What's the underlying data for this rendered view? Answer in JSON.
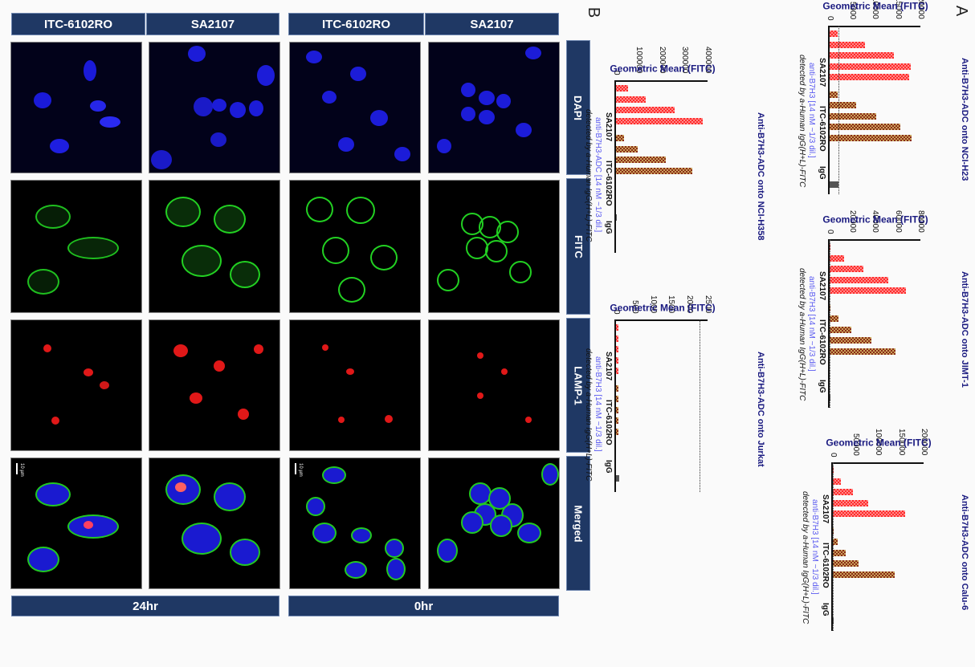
{
  "section_labels": {
    "a": "A",
    "b": "B"
  },
  "grid": {
    "column_headers": [
      "ITC-6102RO",
      "SA2107",
      "ITC-6102RO",
      "SA2107"
    ],
    "row_labels": [
      "DAPI",
      "FITC",
      "LAMP-1",
      "Merged"
    ],
    "time_labels": [
      "24hr",
      "0hr"
    ],
    "scale_bar": "10 µm"
  },
  "chart_data": [
    {
      "type": "bar",
      "title": "Anti-B7H3-ADC onto NCI-H23",
      "ylabel": "Geometric Mean (FITC)",
      "xlabel_line1": "anti-B7H3 [14 nM ~1/3 dil.]",
      "xlabel_line2": "detected by a-Human IgG(H+L)-FITC",
      "categories": [
        "SA2107",
        "ITC-6102RO",
        "IgG"
      ],
      "yticks": [
        "0",
        "5000",
        "10000",
        "15000",
        "20000"
      ],
      "ylim": [
        0,
        20000
      ],
      "reference_line": 2200,
      "series": [
        {
          "name": "SA2107",
          "color": "#ff3b3b",
          "values": [
            1800,
            7800,
            14200,
            17800,
            17600
          ]
        },
        {
          "name": "ITC-6102RO",
          "color": "#8b2e1e",
          "values": [
            1800,
            5800,
            10300,
            15500,
            18000
          ]
        },
        {
          "name": "IgG",
          "color": "#555555",
          "values": [
            2000
          ]
        }
      ]
    },
    {
      "type": "bar",
      "title": "Anti-B7H3-ADC onto JIMT-1",
      "ylabel": "Geometric Mean (FITC)",
      "xlabel_line1": "anti-B7H3 [14 nM ~1/3 dil.]",
      "xlabel_line2": "detected by a-Human IgG(H+L)-FITC",
      "categories": [
        "SA2107",
        "ITC-6102RO",
        "IgG"
      ],
      "yticks": [
        "0",
        "20000",
        "40000",
        "60000",
        "80000"
      ],
      "ylim": [
        0,
        80000
      ],
      "reference_line": 800,
      "series": [
        {
          "name": "SA2107",
          "color": "#ff3b3b",
          "values": [
            800,
            13000,
            30000,
            52000,
            67000
          ]
        },
        {
          "name": "ITC-6102RO",
          "color": "#8b2e1e",
          "values": [
            800,
            8000,
            19000,
            37000,
            58000
          ]
        },
        {
          "name": "IgG",
          "color": "#555555",
          "values": [
            800
          ]
        }
      ]
    },
    {
      "type": "bar",
      "title": "Anti-B7H3-ADC onto Calu-6",
      "ylabel": "Geometric Mean (FITC)",
      "xlabel_line1": "anti-B7H3 [14 nM ~1/3 dil.]",
      "xlabel_line2": "detected by a-Human IgG(H+L)-FITC",
      "categories": [
        "SA2107",
        "ITC-6102RO",
        "IgG"
      ],
      "yticks": [
        "0",
        "50000",
        "100000",
        "150000",
        "200000"
      ],
      "ylim": [
        0,
        200000
      ],
      "reference_line": 1500,
      "series": [
        {
          "name": "SA2107",
          "color": "#ff3b3b",
          "values": [
            1500,
            17000,
            45000,
            77000,
            160000
          ]
        },
        {
          "name": "ITC-6102RO",
          "color": "#8b2e1e",
          "values": [
            1500,
            10000,
            28000,
            57000,
            136000
          ]
        },
        {
          "name": "IgG",
          "color": "#555555",
          "values": [
            500
          ]
        }
      ]
    },
    {
      "type": "bar",
      "title": "Anti-B7H3-ADC onto NCI-H358",
      "ylabel": "Geometric Mean (FITC)",
      "xlabel_line1": "anti-B7H3-ADC [14 nM ~1/3 dil.]",
      "xlabel_line2": "detected by a-Human IgG(H+L)-FITC",
      "categories": [
        "SA2107",
        "ITC-6102RO",
        "IgG"
      ],
      "yticks": [
        "0",
        "100000",
        "200000",
        "300000",
        "400000"
      ],
      "ylim": [
        0,
        400000
      ],
      "reference_line": null,
      "series": [
        {
          "name": "SA2107",
          "color": "#ff3b3b",
          "values": [
            52000,
            130000,
            255000,
            380000
          ]
        },
        {
          "name": "ITC-6102RO",
          "color": "#8b2e1e",
          "values": [
            35000,
            95000,
            218000,
            335000
          ]
        },
        {
          "name": "IgG",
          "color": "#555555",
          "values": [
            0
          ]
        }
      ]
    },
    {
      "type": "bar",
      "title": "Anti-B7H3-ADC onto Jurkat",
      "ylabel": "Geometric Mean (FITC)",
      "xlabel_line1": "anti-B7H3 [14 nM ~1/3 dil.]",
      "xlabel_line2": "detected by a-Human IgG(H+L)-FITC",
      "categories": [
        "SA2107",
        "ITC-6102RO",
        "IgG"
      ],
      "yticks": [
        "0",
        "500",
        "1000",
        "1500",
        "2000",
        "2500"
      ],
      "ylim": [
        0,
        2500
      ],
      "reference_line": 2300,
      "series": [
        {
          "name": "SA2107",
          "color": "#ff3b3b",
          "values": [
            70,
            70,
            70,
            70,
            70
          ]
        },
        {
          "name": "ITC-6102RO",
          "color": "#8b2e1e",
          "values": [
            70,
            70,
            70,
            70,
            70
          ]
        },
        {
          "name": "IgG",
          "color": "#555555",
          "values": [
            80
          ]
        }
      ]
    }
  ]
}
